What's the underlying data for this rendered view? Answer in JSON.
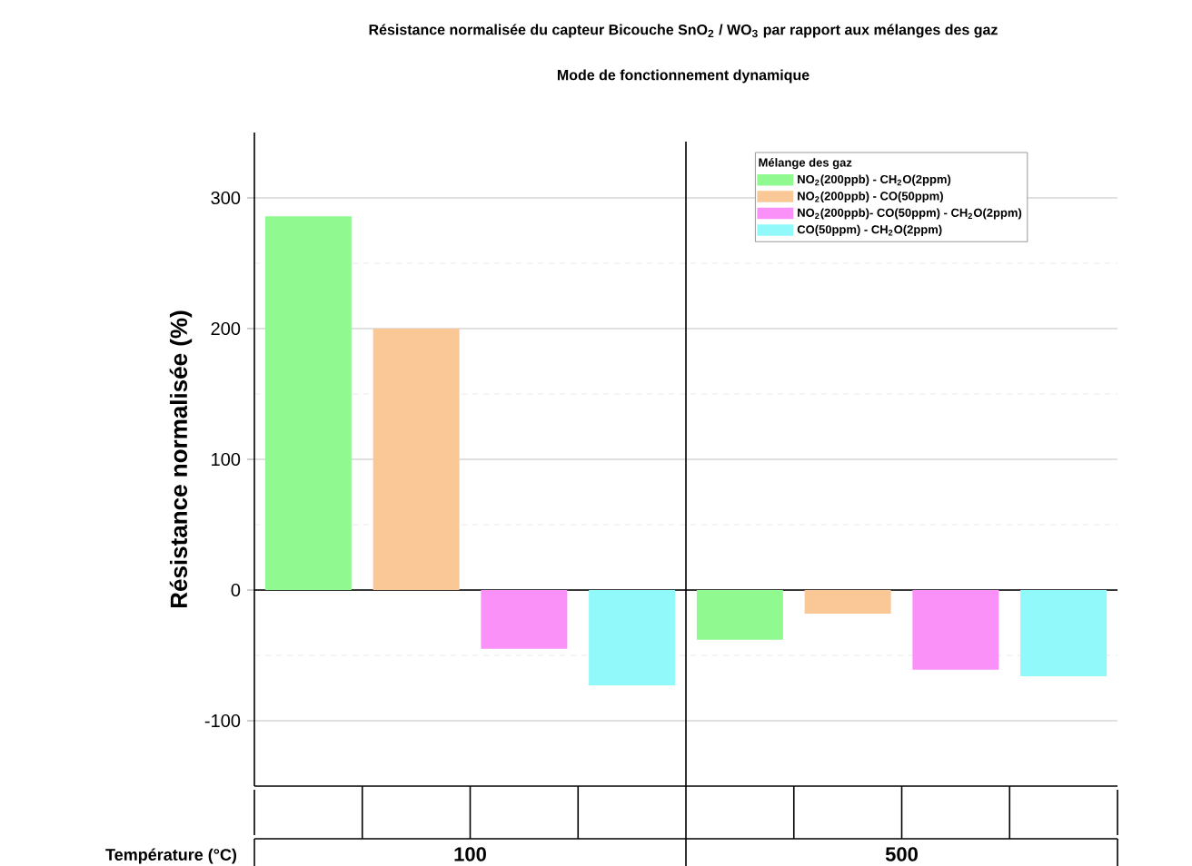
{
  "chart_data": {
    "type": "bar",
    "title": "Résistance normalisée du capteur Bicouche SnO$_{2}$ / WO$_{3}$ par rapport aux mélanges des gaz",
    "subtitle": "Mode de fonctionnement dynamique",
    "ylabel": "Résistance normalisée (%)",
    "xlabel": "Température (°C)",
    "categories": [
      "100",
      "500"
    ],
    "legend_title": "Mélange des gaz",
    "series": [
      {
        "name": "NO$_{2}$(200ppb) - CH$_{2}$O(2ppm)",
        "color": "#90f990",
        "values": [
          286,
          -38
        ]
      },
      {
        "name": "NO$_{2}$(200ppb) - CO(50ppm)",
        "color": "#f9c896",
        "values": [
          200,
          -18
        ]
      },
      {
        "name": "NO$_{2}$(200ppb)- CO(50ppm) - CH$_{2}$O(2ppm)",
        "color": "#f991f9",
        "values": [
          -45,
          -61
        ]
      },
      {
        "name": "CO(50ppm) - CH$_{2}$O(2ppm)",
        "color": "#91f9f9",
        "values": [
          -73,
          -66
        ]
      }
    ],
    "ylim": [
      -150,
      350
    ],
    "yticks": [
      -100,
      0,
      100,
      200,
      300
    ],
    "grid": true,
    "legend": "top right"
  }
}
